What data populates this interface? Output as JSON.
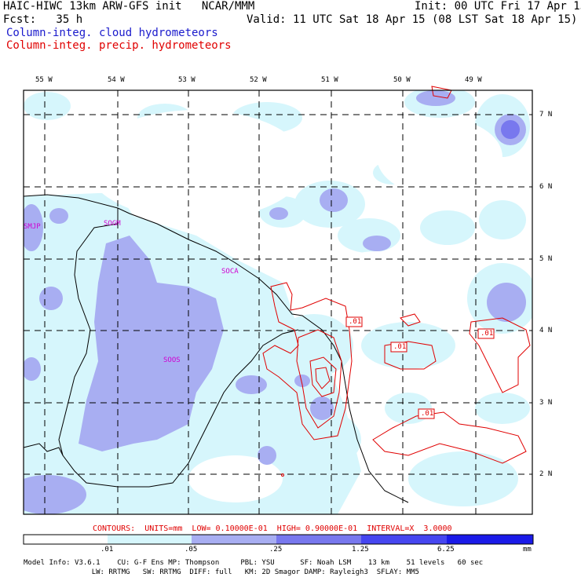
{
  "header": {
    "title_left": "HAIC-HIWC 13km ARW-GFS init   NCAR/MMM",
    "forecast": "Fcst:   35 h",
    "init": "Init: 00 UTC Fri 17 Apr 15",
    "valid": "Valid: 11 UTC Sat 18 Apr 15 (08 LST Sat 18 Apr 15)",
    "legend_cloud": "Column-integ. cloud hydrometeors",
    "legend_precip": "Column-integ. precip. hydrometeors",
    "legend_cloud_color": "#1a1acc",
    "legend_precip_color": "#e00000"
  },
  "map": {
    "lon_labels": [
      "55 W",
      "54 W",
      "53 W",
      "52 W",
      "51 W",
      "50 W",
      "49 W"
    ],
    "lat_labels": [
      "7 N",
      "6 N",
      "5 N",
      "4 N",
      "3 N",
      "2 N"
    ],
    "stations": [
      "SMJP",
      "SOGM",
      "SOCA",
      "SOOS"
    ],
    "contour_labels": [
      ".01",
      ".01",
      ".01",
      ".01"
    ],
    "contour_color": "#e00000",
    "station_color": "#d000d0"
  },
  "footer": {
    "contours_line": "CONTOURS:  UNITS=mm  LOW= 0.10000E-01  HIGH= 0.90000E-01  INTERVAL=X  3.0000",
    "colorbar_ticks": [
      ".01",
      ".05",
      ".25",
      "1.25",
      "6.25"
    ],
    "colorbar_unit": "mm",
    "colorbar_colors": [
      "#ffffff",
      "#d6f6fc",
      "#a8aef2",
      "#7878ee",
      "#4646f0",
      "#1a1ae8"
    ],
    "model_info_1": "Model Info: V3.6.1    CU: G-F Ens MP: Thompson     PBL: YSU      SF: Noah LSM    13 km    51 levels   60 sec",
    "model_info_2": "                LW: RRTMG   SW: RRTMG  DIFF: full   KM: 2D Smagor DAMP: Rayleigh3  SFLAY: MM5"
  }
}
